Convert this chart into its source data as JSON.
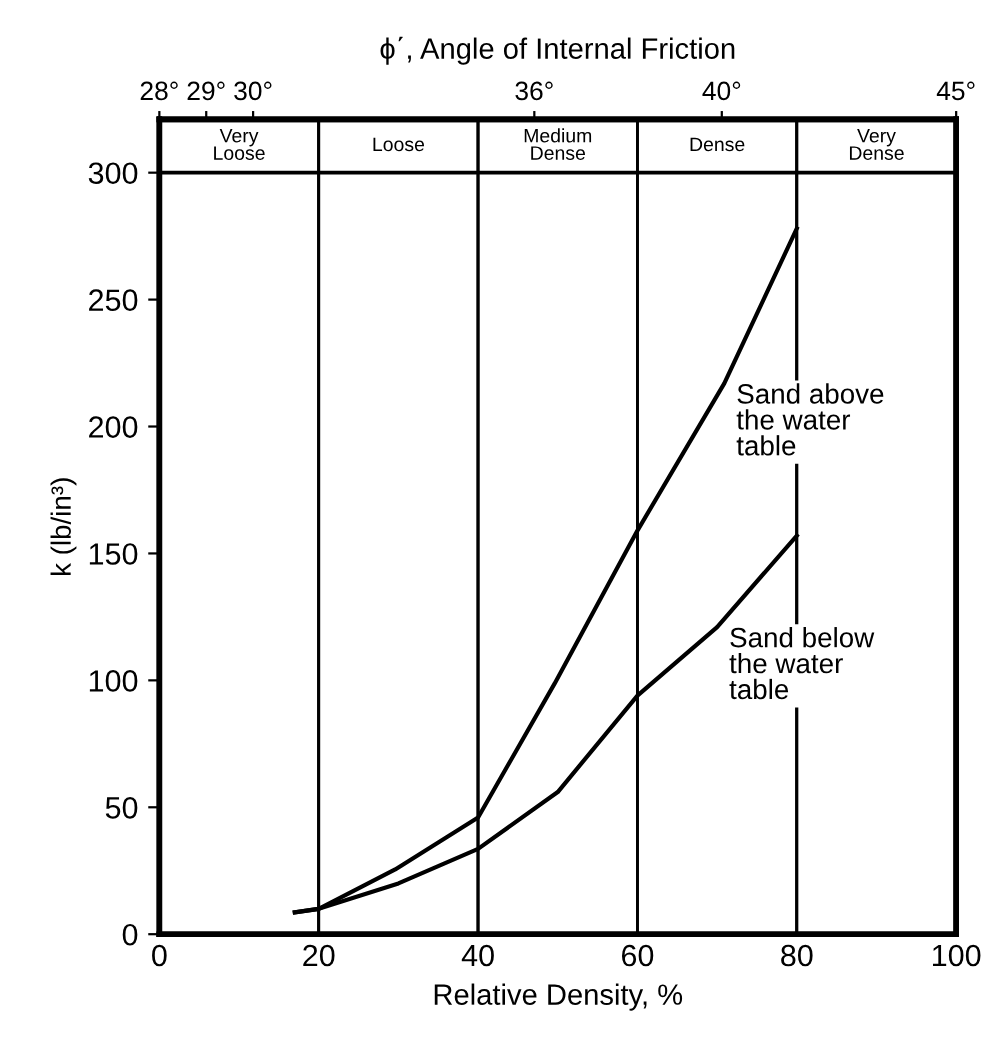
{
  "chart_data": {
    "type": "line",
    "xlabel": "Relative Density, %",
    "ylabel": "k (lb/in³)",
    "x2label": "ϕ΄, Angle of Internal Friction",
    "xlim": [
      0,
      100
    ],
    "xticks": [
      0,
      20,
      40,
      60,
      80,
      100
    ],
    "ylim": [
      0,
      321
    ],
    "yticks": [
      0,
      50,
      100,
      150,
      200,
      250,
      300
    ],
    "x2lim": [
      28,
      45
    ],
    "x2ticks": [
      {
        "value": 28,
        "label": "28°"
      },
      {
        "value": 29,
        "label": "29°"
      },
      {
        "value": 30,
        "label": "30°"
      },
      {
        "value": 36,
        "label": "36°"
      },
      {
        "value": 40,
        "label": "40°"
      },
      {
        "value": 45,
        "label": "45°"
      }
    ],
    "series": [
      {
        "name": "Sand above\nthe water\ntable",
        "color": "#000000",
        "x": [
          17,
          20,
          29.6,
          40,
          49.6,
          60,
          70.9,
          80
        ],
        "values": [
          8.6,
          10,
          25.5,
          46,
          98.7,
          159,
          217,
          278
        ]
      },
      {
        "name": "Sand below\nthe water\ntable",
        "color": "#000000",
        "x": [
          17,
          20,
          30,
          40,
          50,
          60,
          70,
          80
        ],
        "values": [
          8.6,
          10,
          20,
          33.6,
          56,
          94,
          121,
          157
        ]
      }
    ],
    "bands": [
      {
        "axis": "x",
        "from": 0,
        "to": 20,
        "label": "Very\nLoose",
        "color": "#ffffff"
      },
      {
        "axis": "x",
        "from": 20,
        "to": 40,
        "label": "Loose",
        "color": "#ffffff"
      },
      {
        "axis": "x",
        "from": 40,
        "to": 60,
        "label": "Medium\nDense",
        "color": "#ffffff"
      },
      {
        "axis": "x",
        "from": 60,
        "to": 80,
        "label": "Dense",
        "color": "#ffffff"
      },
      {
        "axis": "x",
        "from": 80,
        "to": 100,
        "label": "Very\nDense",
        "color": "#ffffff"
      }
    ],
    "ref_lines": [
      {
        "axis": "y",
        "value": 300,
        "color": "#000000"
      }
    ],
    "grid": "x",
    "legend": false
  }
}
